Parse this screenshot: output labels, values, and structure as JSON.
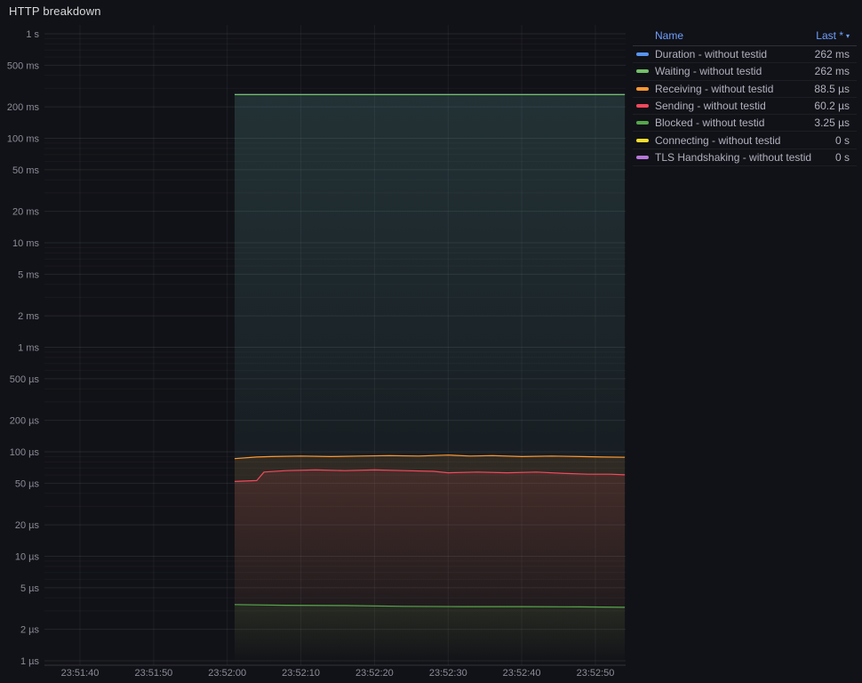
{
  "panel": {
    "title": "HTTP breakdown"
  },
  "legend": {
    "header": {
      "name": "Name",
      "last": "Last *",
      "sort_icon": "▾"
    },
    "rows": [
      {
        "name": "Duration - without testid",
        "value": "262 ms",
        "color": "#5794F2"
      },
      {
        "name": "Waiting - without testid",
        "value": "262 ms",
        "color": "#73BF69"
      },
      {
        "name": "Receiving - without testid",
        "value": "88.5 µs",
        "color": "#FF9830"
      },
      {
        "name": "Sending - without testid",
        "value": "60.2 µs",
        "color": "#F2495C"
      },
      {
        "name": "Blocked - without testid",
        "value": "3.25 µs",
        "color": "#56A64B"
      },
      {
        "name": "Connecting - without testid",
        "value": "0 s",
        "color": "#FADE2A"
      },
      {
        "name": "TLS Handshaking - without testid",
        "value": "0 s",
        "color": "#B877D9"
      }
    ]
  },
  "chart_data": {
    "type": "line",
    "title": "HTTP breakdown",
    "legend_position": "right-table",
    "y_axis": {
      "scale": "log",
      "unit": "seconds",
      "range_us": [
        1,
        1000000
      ],
      "ticks": [
        {
          "label": "1 s",
          "us": 1000000
        },
        {
          "label": "500 ms",
          "us": 500000
        },
        {
          "label": "200 ms",
          "us": 200000
        },
        {
          "label": "100 ms",
          "us": 100000
        },
        {
          "label": "50 ms",
          "us": 50000
        },
        {
          "label": "20 ms",
          "us": 20000
        },
        {
          "label": "10 ms",
          "us": 10000
        },
        {
          "label": "5 ms",
          "us": 5000
        },
        {
          "label": "2 ms",
          "us": 2000
        },
        {
          "label": "1 ms",
          "us": 1000
        },
        {
          "label": "500 µs",
          "us": 500
        },
        {
          "label": "200 µs",
          "us": 200
        },
        {
          "label": "100 µs",
          "us": 100
        },
        {
          "label": "50 µs",
          "us": 50
        },
        {
          "label": "20 µs",
          "us": 20
        },
        {
          "label": "10 µs",
          "us": 10
        },
        {
          "label": "5 µs",
          "us": 5
        },
        {
          "label": "2 µs",
          "us": 2
        },
        {
          "label": "1 µs",
          "us": 1
        }
      ]
    },
    "x_axis": {
      "unit": "time-of-day",
      "ticks": [
        {
          "label": "23:51:40",
          "t": 0
        },
        {
          "label": "23:51:50",
          "t": 10
        },
        {
          "label": "23:52:00",
          "t": 20
        },
        {
          "label": "23:52:10",
          "t": 30
        },
        {
          "label": "23:52:20",
          "t": 40
        },
        {
          "label": "23:52:30",
          "t": 50
        },
        {
          "label": "23:52:40",
          "t": 60
        },
        {
          "label": "23:52:50",
          "t": 70
        }
      ]
    },
    "series": [
      {
        "name": "Duration - without testid",
        "color": "#5794F2",
        "last": "262 ms",
        "points": [
          [
            21,
            262000
          ],
          [
            30,
            262000
          ],
          [
            40,
            262000
          ],
          [
            50,
            262000
          ],
          [
            60,
            262000
          ],
          [
            70,
            262000
          ],
          [
            74,
            262000
          ]
        ]
      },
      {
        "name": "Waiting - without testid",
        "color": "#73BF69",
        "last": "262 ms",
        "points": [
          [
            21,
            261800
          ],
          [
            30,
            261800
          ],
          [
            40,
            261800
          ],
          [
            50,
            261800
          ],
          [
            60,
            261800
          ],
          [
            70,
            261800
          ],
          [
            74,
            261800
          ]
        ]
      },
      {
        "name": "Receiving - without testid",
        "color": "#FF9830",
        "last": "88.5 µs",
        "points": [
          [
            21,
            86
          ],
          [
            24,
            89
          ],
          [
            26,
            90
          ],
          [
            30,
            91
          ],
          [
            34,
            90
          ],
          [
            38,
            91
          ],
          [
            42,
            92
          ],
          [
            46,
            91
          ],
          [
            50,
            93
          ],
          [
            53,
            91
          ],
          [
            56,
            92
          ],
          [
            60,
            90
          ],
          [
            64,
            91
          ],
          [
            68,
            90
          ],
          [
            71,
            89
          ],
          [
            74,
            88.5
          ]
        ]
      },
      {
        "name": "Sending - without testid",
        "color": "#F2495C",
        "last": "60.2 µs",
        "points": [
          [
            21,
            52
          ],
          [
            24,
            53
          ],
          [
            25,
            64
          ],
          [
            28,
            66
          ],
          [
            32,
            67
          ],
          [
            36,
            66
          ],
          [
            40,
            67
          ],
          [
            44,
            66
          ],
          [
            48,
            65
          ],
          [
            50,
            63
          ],
          [
            54,
            64
          ],
          [
            58,
            63
          ],
          [
            62,
            64
          ],
          [
            66,
            62
          ],
          [
            69,
            61
          ],
          [
            72,
            61
          ],
          [
            74,
            60.2
          ]
        ]
      },
      {
        "name": "Blocked - without testid",
        "color": "#56A64B",
        "last": "3.25 µs",
        "points": [
          [
            21,
            3.45
          ],
          [
            28,
            3.4
          ],
          [
            36,
            3.38
          ],
          [
            44,
            3.32
          ],
          [
            52,
            3.3
          ],
          [
            60,
            3.3
          ],
          [
            68,
            3.28
          ],
          [
            74,
            3.25
          ]
        ]
      },
      {
        "name": "Connecting - without testid",
        "color": "#FADE2A",
        "last": "0 s",
        "points": []
      },
      {
        "name": "TLS Handshaking - without testid",
        "color": "#B877D9",
        "last": "0 s",
        "points": []
      }
    ]
  }
}
